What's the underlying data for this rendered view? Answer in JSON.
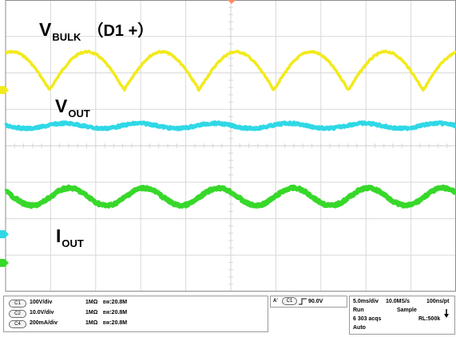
{
  "labels": {
    "vbulk_main": "V",
    "vbulk_sub": "BULK",
    "vbulk_suffix": "（D1 +）",
    "vout_main": "V",
    "vout_sub": "OUT",
    "iout_main": "I",
    "iout_sub": "OUT"
  },
  "colors": {
    "background": "#ffffff",
    "grid": "#d8d8d8",
    "border": "#8c8c8c",
    "ch1": "#f2ea1c",
    "ch2": "#2fd8e6",
    "ch4": "#37d82a",
    "trigger_marker": "#ff8c69"
  },
  "channels": [
    {
      "badge": "C1",
      "scale": "100V/div",
      "impedance": "1MΩ",
      "bw_label": "BW",
      "bw_value": ":20.8M"
    },
    {
      "badge": "C2",
      "scale": "10.0V/div",
      "impedance": "1MΩ",
      "bw_label": "BW",
      "bw_value": ":20.8M"
    },
    {
      "badge": "C4",
      "scale": "200mA/div",
      "impedance": "1MΩ",
      "bw_label": "BW",
      "bw_value": ":20.8M"
    }
  ],
  "trigger": {
    "mode_badge": "A'",
    "source_badge": "C1",
    "slope_icon": "rising-edge-icon",
    "level": "90.0V"
  },
  "acquisition": {
    "timebase": "5.0ms/div",
    "sample_rate": "10.0MS/s",
    "resolution": "100ns/pt",
    "state": "Run",
    "mode": "Sample",
    "acqs": "6 303 acqs",
    "record_length": "RL:500k",
    "trigger_mode": "Auto",
    "icon": "single-shot-arrow-icon"
  },
  "icons": {
    "ch1_ground": "ch1-ground-marker-icon",
    "ch2_ground": "ch2-ground-marker-icon",
    "ch4_ground": "ch4-ground-marker-icon",
    "trigger_position": "trigger-position-icon"
  }
}
